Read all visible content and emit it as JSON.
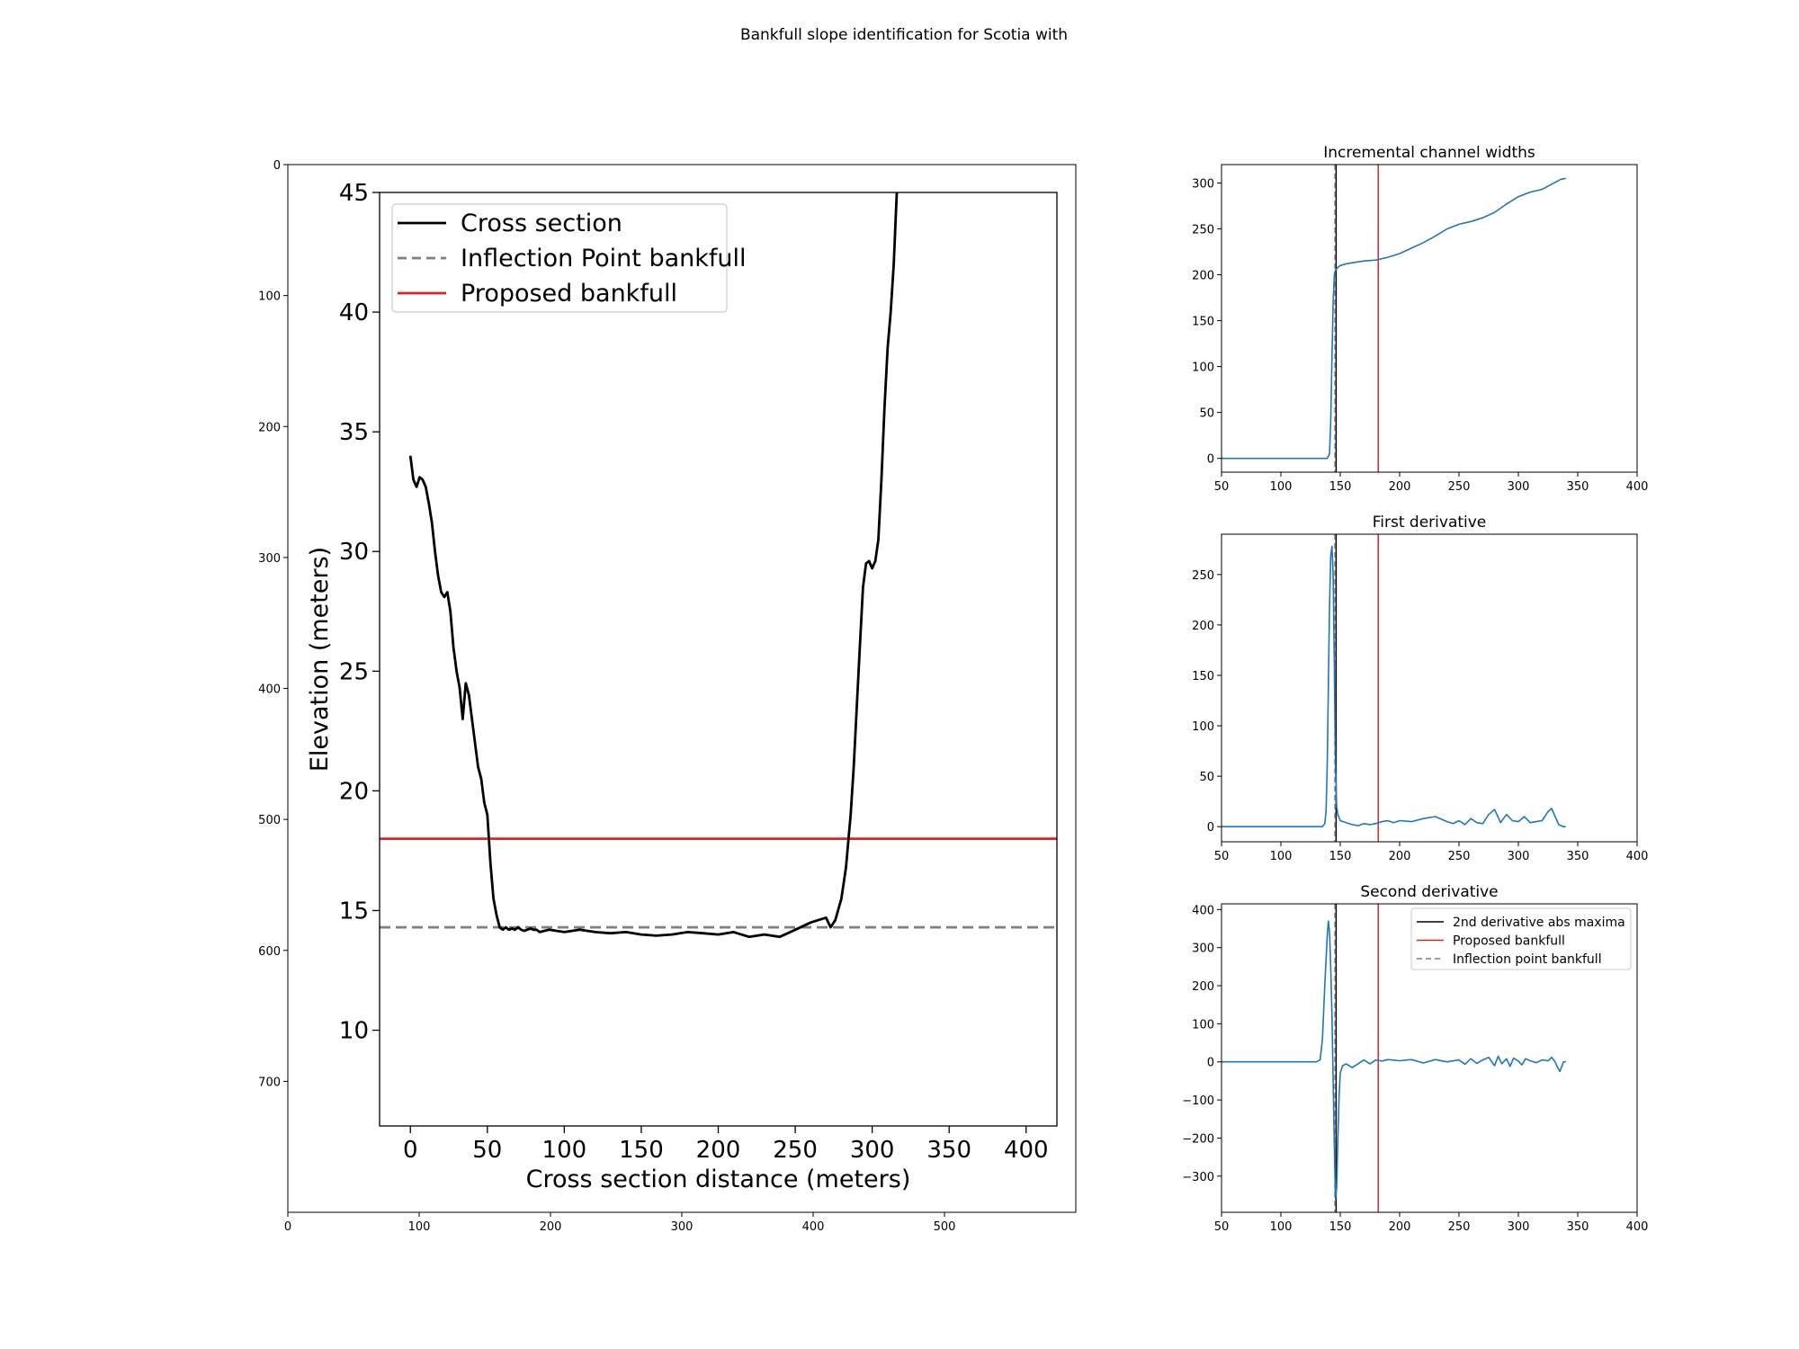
{
  "suptitle": "Bankfull slope identification for Scotia with",
  "colors": {
    "cross_section": "#000000",
    "inflection": "#7f7f7f",
    "proposed": "#d62728",
    "series": "#1f77b4",
    "maxima": "#000000"
  },
  "chart_data": [
    {
      "panel": "image-frame",
      "type": "line",
      "description_axes": "matplotlib image axes framing an embedded plot image",
      "xticks": [
        0,
        100,
        200,
        300,
        400,
        500
      ],
      "yticks": [
        0,
        100,
        200,
        300,
        400,
        500,
        600,
        700
      ],
      "xlim": [
        0,
        600
      ],
      "ylim": [
        800,
        0
      ],
      "xlabel": "",
      "ylabel": "",
      "title": ""
    },
    {
      "panel": "cross-section",
      "type": "line",
      "title": "",
      "xlabel": "Cross section distance (meters)",
      "ylabel": "Elevation (meters)",
      "xlim": [
        -20,
        420
      ],
      "ylim": [
        6,
        45
      ],
      "xticks": [
        0,
        50,
        100,
        150,
        200,
        250,
        300,
        350,
        400
      ],
      "yticks": [
        10,
        15,
        20,
        25,
        30,
        35,
        40,
        45
      ],
      "legend": [
        "Cross section",
        "Inflection Point bankfull",
        "Proposed bankfull"
      ],
      "legend_position": "upper-left",
      "series": [
        {
          "name": "Cross section",
          "x": [
            0,
            2,
            4,
            6,
            8,
            10,
            12,
            14,
            16,
            18,
            20,
            22,
            24,
            26,
            28,
            30,
            32,
            34,
            36,
            38,
            40,
            42,
            44,
            46,
            48,
            50,
            52,
            54,
            56,
            58,
            60,
            62,
            64,
            66,
            68,
            70,
            72,
            74,
            76,
            78,
            80,
            82,
            84,
            90,
            100,
            110,
            120,
            130,
            140,
            150,
            160,
            170,
            180,
            190,
            200,
            210,
            220,
            230,
            240,
            250,
            255,
            260,
            265,
            270,
            273,
            276,
            280,
            283,
            286,
            288,
            290,
            292,
            294,
            296,
            298,
            300,
            302,
            304,
            306,
            308,
            310,
            312,
            314,
            316
          ],
          "y": [
            34.0,
            33.0,
            32.7,
            33.1,
            33.0,
            32.7,
            32.0,
            31.2,
            30.0,
            29.0,
            28.3,
            28.1,
            28.3,
            27.5,
            26.0,
            25.0,
            24.3,
            23.0,
            24.5,
            24.0,
            23.0,
            22.0,
            21.0,
            20.5,
            19.5,
            19.0,
            17.0,
            15.5,
            14.8,
            14.3,
            14.2,
            14.3,
            14.2,
            14.25,
            14.2,
            14.3,
            14.2,
            14.15,
            14.2,
            14.25,
            14.2,
            14.2,
            14.1,
            14.2,
            14.1,
            14.2,
            14.1,
            14.05,
            14.1,
            14.0,
            13.95,
            14.0,
            14.1,
            14.05,
            14.0,
            14.1,
            13.9,
            14.0,
            13.9,
            14.2,
            14.35,
            14.5,
            14.6,
            14.7,
            14.3,
            14.6,
            15.5,
            16.8,
            19.0,
            21.0,
            23.5,
            26.0,
            28.5,
            29.5,
            29.6,
            29.3,
            29.6,
            30.5,
            33.0,
            36.0,
            38.5,
            40.0,
            42.0,
            45.0
          ]
        },
        {
          "name": "Inflection Point bankfull",
          "style": "dashed",
          "y": 14.3
        },
        {
          "name": "Proposed bankfull",
          "y": 18.0
        }
      ]
    },
    {
      "panel": "incremental-widths",
      "type": "line",
      "title": "Incremental channel widths",
      "xlabel": "",
      "ylabel": "",
      "xlim": [
        50,
        400
      ],
      "ylim": [
        -15,
        320
      ],
      "xticks": [
        50,
        100,
        150,
        200,
        250,
        300,
        350,
        400
      ],
      "yticks": [
        0,
        50,
        100,
        150,
        200,
        250,
        300
      ],
      "vlines": [
        {
          "x": 146.5,
          "role": "maxima"
        },
        {
          "x": 145.5,
          "role": "inflection",
          "style": "dashed"
        },
        {
          "x": 182,
          "role": "proposed"
        }
      ],
      "series": [
        {
          "x": [
            50,
            100,
            139,
            141,
            142,
            143,
            144,
            145,
            146,
            148,
            150,
            155,
            160,
            170,
            180,
            190,
            200,
            210,
            220,
            230,
            240,
            250,
            260,
            270,
            280,
            290,
            300,
            310,
            320,
            330,
            336,
            340
          ],
          "y": [
            0,
            0,
            0,
            5,
            40,
            110,
            170,
            200,
            205,
            208,
            210,
            212,
            213,
            215,
            216,
            219,
            223,
            229,
            235,
            242,
            250,
            255,
            258,
            262,
            268,
            277,
            285,
            290,
            293,
            300,
            304,
            305
          ]
        }
      ]
    },
    {
      "panel": "first-derivative",
      "type": "line",
      "title": "First derivative",
      "xlabel": "",
      "ylabel": "",
      "xlim": [
        50,
        400
      ],
      "ylim": [
        -15,
        290
      ],
      "xticks": [
        50,
        100,
        150,
        200,
        250,
        300,
        350,
        400
      ],
      "yticks": [
        0,
        50,
        100,
        150,
        200,
        250
      ],
      "vlines": [
        {
          "x": 146.5,
          "role": "maxima"
        },
        {
          "x": 145.5,
          "role": "inflection",
          "style": "dashed"
        },
        {
          "x": 182,
          "role": "proposed"
        }
      ],
      "series": [
        {
          "x": [
            50,
            135,
            137,
            138,
            139,
            140,
            141,
            142,
            143,
            144,
            145,
            146,
            147,
            148,
            150,
            155,
            160,
            165,
            170,
            175,
            180,
            185,
            190,
            195,
            200,
            210,
            220,
            230,
            240,
            245,
            250,
            255,
            260,
            265,
            270,
            275,
            280,
            285,
            290,
            295,
            300,
            305,
            310,
            315,
            320,
            325,
            328,
            331,
            334,
            336,
            338,
            340
          ],
          "y": [
            0,
            0,
            3,
            15,
            60,
            140,
            220,
            268,
            278,
            250,
            160,
            60,
            20,
            12,
            6,
            4,
            2,
            1,
            3,
            2,
            3,
            5,
            6,
            4,
            6,
            5,
            8,
            10,
            5,
            3,
            6,
            2,
            8,
            4,
            3,
            12,
            17,
            4,
            12,
            6,
            5,
            10,
            4,
            5,
            6,
            15,
            18,
            10,
            2,
            1,
            0,
            0
          ]
        }
      ]
    },
    {
      "panel": "second-derivative",
      "type": "line",
      "title": "Second derivative",
      "xlabel": "",
      "ylabel": "",
      "xlim": [
        50,
        400
      ],
      "ylim": [
        -395,
        415
      ],
      "xticks": [
        50,
        100,
        150,
        200,
        250,
        300,
        350,
        400
      ],
      "yticks": [
        -300,
        -200,
        -100,
        0,
        100,
        200,
        300,
        400
      ],
      "legend": [
        "2nd derivative abs maxima",
        "Proposed bankfull",
        "Inflection point bankfull"
      ],
      "legend_position": "top-right",
      "vlines": [
        {
          "x": 146.5,
          "role": "maxima"
        },
        {
          "x": 145.5,
          "role": "inflection",
          "style": "dashed"
        },
        {
          "x": 182,
          "role": "proposed"
        }
      ],
      "series": [
        {
          "x": [
            50,
            130,
            133,
            135,
            137,
            139,
            140,
            141,
            142,
            143,
            144,
            145,
            146,
            147,
            148,
            149,
            150,
            152,
            155,
            160,
            165,
            170,
            175,
            180,
            185,
            190,
            200,
            210,
            220,
            230,
            240,
            250,
            255,
            260,
            265,
            270,
            275,
            280,
            283,
            286,
            290,
            293,
            296,
            300,
            303,
            306,
            310,
            315,
            320,
            325,
            328,
            331,
            333,
            335,
            338,
            340
          ],
          "y": [
            0,
            0,
            5,
            60,
            200,
            330,
            370,
            340,
            250,
            120,
            -50,
            -220,
            -360,
            -330,
            -200,
            -90,
            -30,
            -10,
            -5,
            -15,
            -5,
            5,
            -5,
            5,
            2,
            6,
            3,
            6,
            -3,
            6,
            0,
            5,
            -6,
            8,
            -4,
            5,
            12,
            -10,
            15,
            -5,
            8,
            -12,
            10,
            2,
            -8,
            8,
            3,
            -2,
            5,
            3,
            12,
            0,
            -15,
            -25,
            0,
            0
          ]
        }
      ]
    }
  ]
}
